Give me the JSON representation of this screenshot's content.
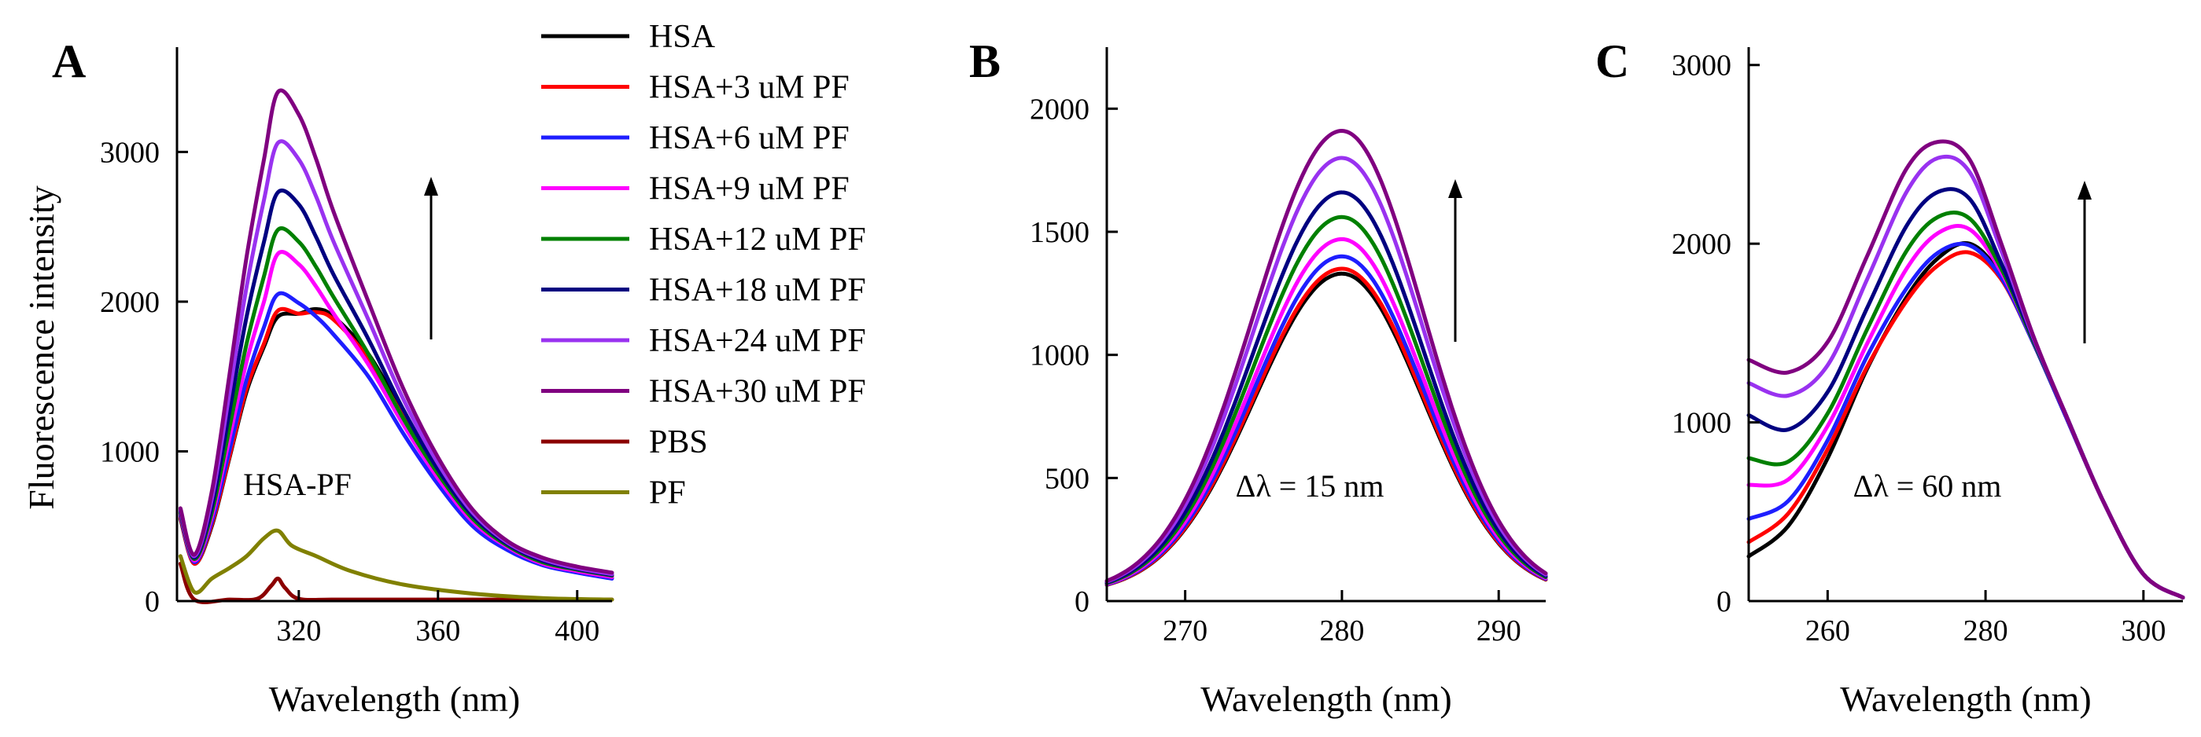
{
  "figure": {
    "panel_labels": [
      "A",
      "B",
      "C"
    ]
  },
  "legend": {
    "entries": [
      {
        "label": "HSA",
        "color": "#000000"
      },
      {
        "label": "HSA+3 uM PF",
        "color": "#ff0000"
      },
      {
        "label": "HSA+6 uM PF",
        "color": "#1e1eff"
      },
      {
        "label": "HSA+9 uM PF",
        "color": "#ff00ff"
      },
      {
        "label": "HSA+12 uM PF",
        "color": "#008000"
      },
      {
        "label": "HSA+18 uM PF",
        "color": "#000080"
      },
      {
        "label": "HSA+24 uM PF",
        "color": "#9932f0"
      },
      {
        "label": "HSA+30 uM PF",
        "color": "#800080"
      },
      {
        "label": "PBS",
        "color": "#8b0000"
      },
      {
        "label": "PF",
        "color": "#808000"
      }
    ]
  },
  "chart_data": [
    {
      "type": "line",
      "panel": "A",
      "title": "",
      "xlabel": "Wavelength (nm)",
      "ylabel": "Fluorescence intensity",
      "xlim": [
        285,
        410
      ],
      "ylim": [
        0,
        3700
      ],
      "xticks": [
        "320",
        "360",
        "400"
      ],
      "yticks": [
        "0",
        "1000",
        "2000",
        "3000"
      ],
      "annotation": "HSA-PF",
      "arrow": "up",
      "series": [
        {
          "name": "HSA",
          "x": [
            286,
            290,
            295,
            300,
            305,
            310,
            314,
            320,
            325,
            330,
            340,
            350,
            360,
            370,
            380,
            390,
            400,
            410
          ],
          "y": [
            550,
            250,
            500,
            950,
            1400,
            1700,
            1900,
            1920,
            1950,
            1900,
            1650,
            1250,
            850,
            550,
            350,
            250,
            200,
            160
          ]
        },
        {
          "name": "HSA+3 uM PF",
          "x": [
            286,
            290,
            295,
            300,
            305,
            310,
            314,
            320,
            325,
            330,
            340,
            350,
            360,
            370,
            380,
            390,
            400,
            410
          ],
          "y": [
            560,
            250,
            510,
            960,
            1420,
            1720,
            1940,
            1920,
            1930,
            1880,
            1620,
            1230,
            840,
            540,
            350,
            250,
            200,
            160
          ]
        },
        {
          "name": "HSA+6 uM PF",
          "x": [
            286,
            290,
            295,
            300,
            305,
            310,
            314,
            320,
            325,
            330,
            340,
            350,
            360,
            370,
            380,
            390,
            400,
            410
          ],
          "y": [
            570,
            260,
            530,
            1000,
            1480,
            1830,
            2050,
            1990,
            1900,
            1780,
            1500,
            1120,
            780,
            500,
            340,
            240,
            190,
            150
          ]
        },
        {
          "name": "HSA+9 uM PF",
          "x": [
            286,
            290,
            295,
            300,
            305,
            310,
            314,
            320,
            325,
            330,
            340,
            350,
            360,
            370,
            380,
            390,
            400,
            410
          ],
          "y": [
            580,
            270,
            560,
            1080,
            1600,
            2000,
            2320,
            2250,
            2100,
            1920,
            1580,
            1180,
            820,
            530,
            360,
            250,
            200,
            160
          ]
        },
        {
          "name": "HSA+12 uM PF",
          "x": [
            286,
            290,
            295,
            300,
            305,
            310,
            314,
            320,
            325,
            330,
            340,
            350,
            360,
            370,
            380,
            390,
            400,
            410
          ],
          "y": [
            590,
            280,
            590,
            1150,
            1720,
            2170,
            2480,
            2400,
            2230,
            2030,
            1650,
            1220,
            850,
            550,
            370,
            260,
            210,
            170
          ]
        },
        {
          "name": "HSA+18 uM PF",
          "x": [
            286,
            290,
            295,
            300,
            305,
            310,
            314,
            320,
            325,
            330,
            340,
            350,
            360,
            370,
            380,
            390,
            400,
            410
          ],
          "y": [
            600,
            290,
            630,
            1260,
            1900,
            2400,
            2730,
            2650,
            2430,
            2180,
            1750,
            1280,
            880,
            570,
            380,
            270,
            215,
            175
          ]
        },
        {
          "name": "HSA+24 uM PF",
          "x": [
            286,
            290,
            295,
            300,
            305,
            310,
            314,
            320,
            325,
            330,
            340,
            350,
            360,
            370,
            380,
            390,
            400,
            410
          ],
          "y": [
            610,
            300,
            680,
            1380,
            2100,
            2680,
            3060,
            2950,
            2700,
            2400,
            1880,
            1350,
            920,
            590,
            390,
            280,
            220,
            180
          ]
        },
        {
          "name": "HSA+30 uM PF",
          "x": [
            286,
            290,
            295,
            300,
            305,
            310,
            314,
            320,
            325,
            330,
            340,
            350,
            360,
            370,
            380,
            390,
            400,
            410
          ],
          "y": [
            620,
            310,
            730,
            1500,
            2300,
            2950,
            3400,
            3250,
            2950,
            2600,
            2000,
            1420,
            960,
            610,
            400,
            290,
            230,
            190
          ]
        },
        {
          "name": "PBS",
          "x": [
            286,
            290,
            300,
            308,
            312,
            314,
            316,
            320,
            330,
            350,
            410
          ],
          "y": [
            250,
            10,
            10,
            15,
            100,
            150,
            90,
            15,
            10,
            10,
            10
          ]
        },
        {
          "name": "PF",
          "x": [
            286,
            290,
            295,
            300,
            305,
            310,
            314,
            318,
            325,
            335,
            350,
            370,
            390,
            410
          ],
          "y": [
            300,
            60,
            150,
            220,
            300,
            420,
            470,
            370,
            300,
            200,
            110,
            50,
            20,
            10
          ]
        }
      ]
    },
    {
      "type": "line",
      "panel": "B",
      "title": "",
      "xlabel": "Wavelength (nm)",
      "ylabel": "",
      "xlim": [
        265,
        293
      ],
      "ylim": [
        0,
        2250
      ],
      "xticks": [
        "270",
        "280",
        "290"
      ],
      "yticks": [
        "0",
        "500",
        "1000",
        "1500",
        "2000"
      ],
      "annotation": "Δλ = 15 nm",
      "arrow": "up",
      "series": [
        {
          "name": "HSA",
          "peak": 1330
        },
        {
          "name": "HSA+3 uM PF",
          "peak": 1350
        },
        {
          "name": "HSA+6 uM PF",
          "peak": 1400
        },
        {
          "name": "HSA+9 uM PF",
          "peak": 1470
        },
        {
          "name": "HSA+12 uM PF",
          "peak": 1560
        },
        {
          "name": "HSA+18 uM PF",
          "peak": 1660
        },
        {
          "name": "HSA+24 uM PF",
          "peak": 1800
        },
        {
          "name": "HSA+30 uM PF",
          "peak": 1910
        }
      ]
    },
    {
      "type": "line",
      "panel": "C",
      "title": "",
      "xlabel": "Wavelength (nm)",
      "ylabel": "",
      "xlim": [
        250,
        305
      ],
      "ylim": [
        0,
        3100
      ],
      "xticks": [
        "260",
        "280",
        "300"
      ],
      "yticks": [
        "0",
        "1000",
        "2000",
        "3000"
      ],
      "annotation": "Δλ = 60 nm",
      "arrow": "up",
      "series": [
        {
          "name": "HSA",
          "x": [
            250,
            255,
            260,
            265,
            270,
            274,
            278,
            282,
            286,
            290,
            295,
            300,
            305
          ],
          "y": [
            250,
            420,
            800,
            1300,
            1700,
            1920,
            2000,
            1820,
            1450,
            1050,
            550,
            150,
            20
          ]
        },
        {
          "name": "HSA+3 uM PF",
          "x": [
            250,
            255,
            260,
            265,
            270,
            274,
            278,
            282,
            286,
            290,
            295,
            300,
            305
          ],
          "y": [
            330,
            490,
            850,
            1310,
            1680,
            1880,
            1950,
            1800,
            1450,
            1050,
            550,
            150,
            20
          ]
        },
        {
          "name": "HSA+6 uM PF",
          "x": [
            250,
            255,
            260,
            265,
            270,
            274,
            278,
            282,
            286,
            290,
            295,
            300,
            305
          ],
          "y": [
            460,
            560,
            900,
            1370,
            1750,
            1950,
            1990,
            1810,
            1450,
            1050,
            550,
            150,
            20
          ]
        },
        {
          "name": "HSA+9 uM PF",
          "x": [
            250,
            255,
            260,
            265,
            270,
            274,
            278,
            282,
            286,
            290,
            295,
            300,
            305
          ],
          "y": [
            650,
            680,
            980,
            1440,
            1860,
            2060,
            2080,
            1840,
            1460,
            1060,
            550,
            150,
            20
          ]
        },
        {
          "name": "HSA+12 uM PF",
          "x": [
            250,
            255,
            260,
            265,
            270,
            274,
            278,
            282,
            286,
            290,
            295,
            300,
            305
          ],
          "y": [
            800,
            780,
            1050,
            1520,
            1960,
            2150,
            2140,
            1860,
            1460,
            1060,
            550,
            150,
            20
          ]
        },
        {
          "name": "HSA+18 uM PF",
          "x": [
            250,
            255,
            260,
            265,
            270,
            274,
            278,
            282,
            286,
            290,
            295,
            300,
            305
          ],
          "y": [
            1040,
            960,
            1170,
            1640,
            2100,
            2290,
            2250,
            1890,
            1470,
            1060,
            550,
            150,
            20
          ]
        },
        {
          "name": "HSA+24 uM PF",
          "x": [
            250,
            255,
            260,
            265,
            270,
            274,
            278,
            282,
            286,
            290,
            295,
            300,
            305
          ],
          "y": [
            1220,
            1150,
            1320,
            1800,
            2290,
            2480,
            2400,
            1960,
            1480,
            1060,
            550,
            150,
            20
          ]
        },
        {
          "name": "HSA+30 uM PF",
          "x": [
            250,
            255,
            260,
            265,
            270,
            274,
            278,
            282,
            286,
            290,
            295,
            300,
            305
          ],
          "y": [
            1350,
            1280,
            1450,
            1930,
            2420,
            2570,
            2470,
            2000,
            1490,
            1060,
            550,
            150,
            20
          ]
        }
      ]
    }
  ]
}
